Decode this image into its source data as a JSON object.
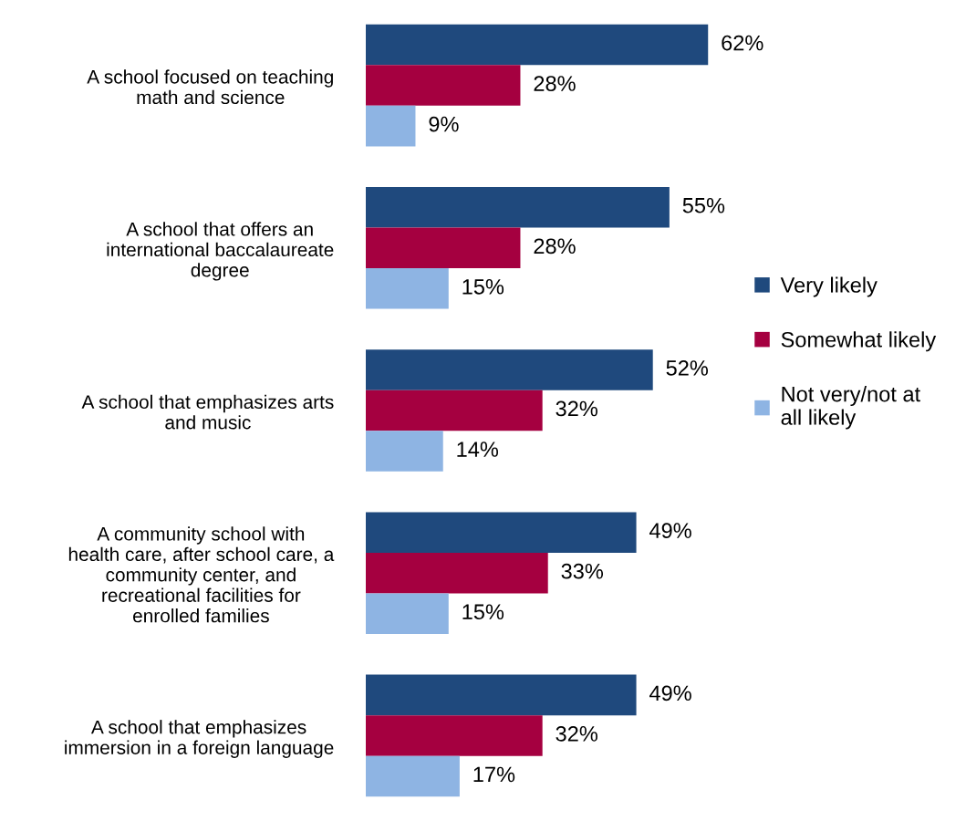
{
  "chart_data": {
    "type": "bar",
    "orientation": "horizontal",
    "categories": [
      "A school focused on teaching\nmath and science",
      "A school that offers an\ninternational baccalaureate\ndegree",
      "A school that emphasizes arts\nand music",
      "A community school with\nhealth care, after school care, a\ncommunity center, and\nrecreational facilities for\nenrolled families",
      "A school that emphasizes\nimmersion in a foreign language"
    ],
    "series": [
      {
        "name": "Very likely",
        "color": "#1f497d",
        "values": [
          62,
          55,
          52,
          49,
          49
        ],
        "value_labels": [
          "62%",
          "55%",
          "52%",
          "49%",
          "49%"
        ]
      },
      {
        "name": "Somewhat likely",
        "color": "#a50040",
        "values": [
          28,
          28,
          32,
          33,
          32
        ],
        "value_labels": [
          "28%",
          "28%",
          "32%",
          "33%",
          "32%"
        ]
      },
      {
        "name": "Not very/not at\nall likely",
        "color": "#8eb4e3",
        "values": [
          9,
          15,
          14,
          15,
          17
        ],
        "value_labels": [
          "9%",
          "15%",
          "14%",
          "15%",
          "17%"
        ]
      }
    ],
    "tick_labels": "y",
    "grid": false,
    "legend": "right"
  }
}
